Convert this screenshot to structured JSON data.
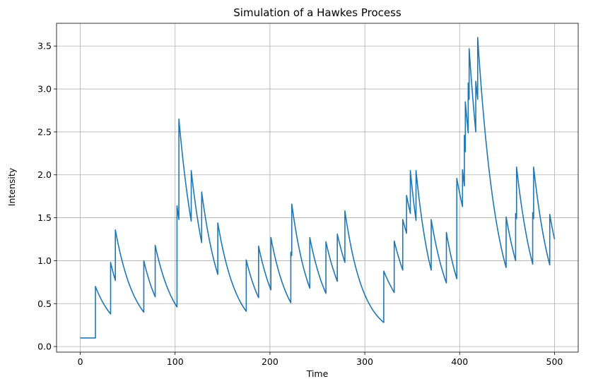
{
  "chart_data": {
    "type": "line",
    "title": "Simulation of a Hawkes Process",
    "xlabel": "Time",
    "ylabel": "Intensity",
    "xlim": [
      -25,
      525
    ],
    "ylim": [
      -0.065,
      3.765
    ],
    "xticks": [
      0,
      100,
      200,
      300,
      400,
      500
    ],
    "xtick_labels": [
      "0",
      "100",
      "200",
      "300",
      "400",
      "500"
    ],
    "yticks": [
      0.0,
      0.5,
      1.0,
      1.5,
      2.0,
      2.5,
      3.0,
      3.5
    ],
    "ytick_labels": [
      "0.0",
      "0.5",
      "1.0",
      "1.5",
      "2.0",
      "2.5",
      "3.0",
      "3.5"
    ],
    "grid": true,
    "line_color": "#1f77b4",
    "series": [
      {
        "points": [
          [
            0,
            0.1
          ],
          [
            16,
            0.1
          ],
          [
            16,
            0.7
          ],
          [
            32,
            0.38
          ],
          [
            32,
            0.98
          ],
          [
            37,
            0.77
          ],
          [
            37,
            1.36
          ],
          [
            67,
            0.4
          ],
          [
            67,
            1.0
          ],
          [
            79,
            0.58
          ],
          [
            79,
            1.18
          ],
          [
            102,
            0.46
          ],
          [
            102,
            1.64
          ],
          [
            104,
            1.48
          ],
          [
            104,
            2.65
          ],
          [
            117,
            1.46
          ],
          [
            117,
            2.05
          ],
          [
            128,
            1.21
          ],
          [
            128,
            1.8
          ],
          [
            145,
            0.84
          ],
          [
            145,
            1.44
          ],
          [
            175,
            0.41
          ],
          [
            175,
            1.01
          ],
          [
            188,
            0.57
          ],
          [
            188,
            1.17
          ],
          [
            201,
            0.66
          ],
          [
            201,
            1.27
          ],
          [
            222,
            0.51
          ],
          [
            222,
            1.1
          ],
          [
            223,
            1.06
          ],
          [
            223,
            1.66
          ],
          [
            242,
            0.68
          ],
          [
            242,
            1.27
          ],
          [
            259,
            0.62
          ],
          [
            259,
            1.22
          ],
          [
            271,
            0.76
          ],
          [
            271,
            1.31
          ],
          [
            279,
            0.98
          ],
          [
            279,
            1.58
          ],
          [
            320,
            0.28
          ],
          [
            320,
            0.88
          ],
          [
            331,
            0.63
          ],
          [
            331,
            1.23
          ],
          [
            340,
            0.89
          ],
          [
            340,
            1.48
          ],
          [
            344,
            1.32
          ],
          [
            344,
            1.76
          ],
          [
            348,
            1.55
          ],
          [
            348,
            2.05
          ],
          [
            354,
            1.47
          ],
          [
            354,
            2.05
          ],
          [
            370,
            0.89
          ],
          [
            370,
            1.48
          ],
          [
            386,
            0.74
          ],
          [
            386,
            1.33
          ],
          [
            397,
            0.79
          ],
          [
            397,
            1.96
          ],
          [
            403,
            1.63
          ],
          [
            403,
            2.06
          ],
          [
            405,
            1.87
          ],
          [
            405,
            2.46
          ],
          [
            406,
            2.27
          ],
          [
            406,
            2.85
          ],
          [
            409,
            2.49
          ],
          [
            409,
            3.07
          ],
          [
            410,
            2.88
          ],
          [
            410,
            3.47
          ],
          [
            417,
            2.5
          ],
          [
            417,
            3.09
          ],
          [
            419,
            2.88
          ],
          [
            419,
            3.6
          ],
          [
            449,
            0.92
          ],
          [
            449,
            1.51
          ],
          [
            459,
            1.0
          ],
          [
            459,
            1.55
          ],
          [
            460,
            1.49
          ],
          [
            460,
            2.09
          ],
          [
            477,
            0.96
          ],
          [
            477,
            1.56
          ],
          [
            478,
            1.49
          ],
          [
            478,
            2.09
          ],
          [
            495,
            0.95
          ],
          [
            495,
            1.54
          ],
          [
            500,
            1.25
          ]
        ],
        "decay": 0.05
      }
    ]
  }
}
